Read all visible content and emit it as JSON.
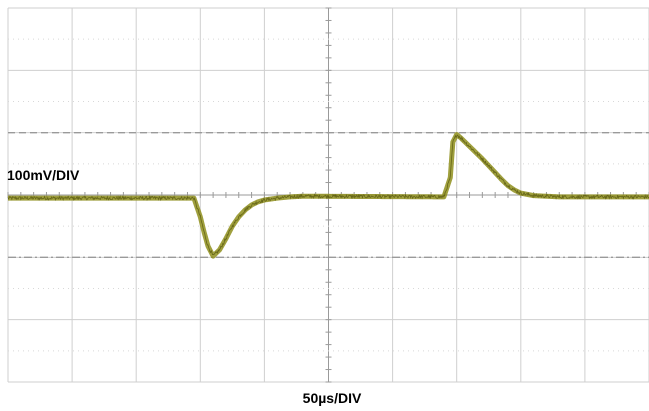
{
  "chart_data": {
    "type": "line",
    "title": "",
    "xlabel": "50µs/DIV",
    "ylabel": "100mV/DIV",
    "xlim": [
      0,
      500
    ],
    "ylim": [
      -300,
      300
    ],
    "grid": true,
    "x_divisions": 10,
    "y_divisions": 6,
    "reference_lines_y": [
      100,
      -100
    ],
    "colors": {
      "trace": "#8f8f1c",
      "trace_dark": "#4d4d08",
      "grid": "#cfcfcf",
      "grid_dots": "#d8d8d8",
      "reference": "#9a9a9a",
      "axis": "#9a9a9a"
    },
    "series": [
      {
        "x": [
          0,
          145,
          150,
          153,
          156,
          160,
          165,
          170,
          175,
          180,
          185,
          190,
          195,
          200,
          210,
          220,
          230,
          240,
          340,
          345,
          347,
          350,
          353,
          356,
          360,
          365,
          370,
          375,
          380,
          385,
          390,
          395,
          400,
          410,
          420,
          430,
          440,
          450,
          500
        ],
        "y": [
          -5,
          -5,
          -35,
          -60,
          -82,
          -98,
          -88,
          -70,
          -50,
          -35,
          -24,
          -16,
          -11,
          -8,
          -5,
          -3,
          -2,
          -2,
          -3,
          28,
          85,
          97,
          92,
          86,
          78,
          68,
          58,
          47,
          36,
          25,
          15,
          8,
          3,
          -1,
          -2,
          -3,
          -3,
          -3,
          -3
        ]
      }
    ]
  }
}
